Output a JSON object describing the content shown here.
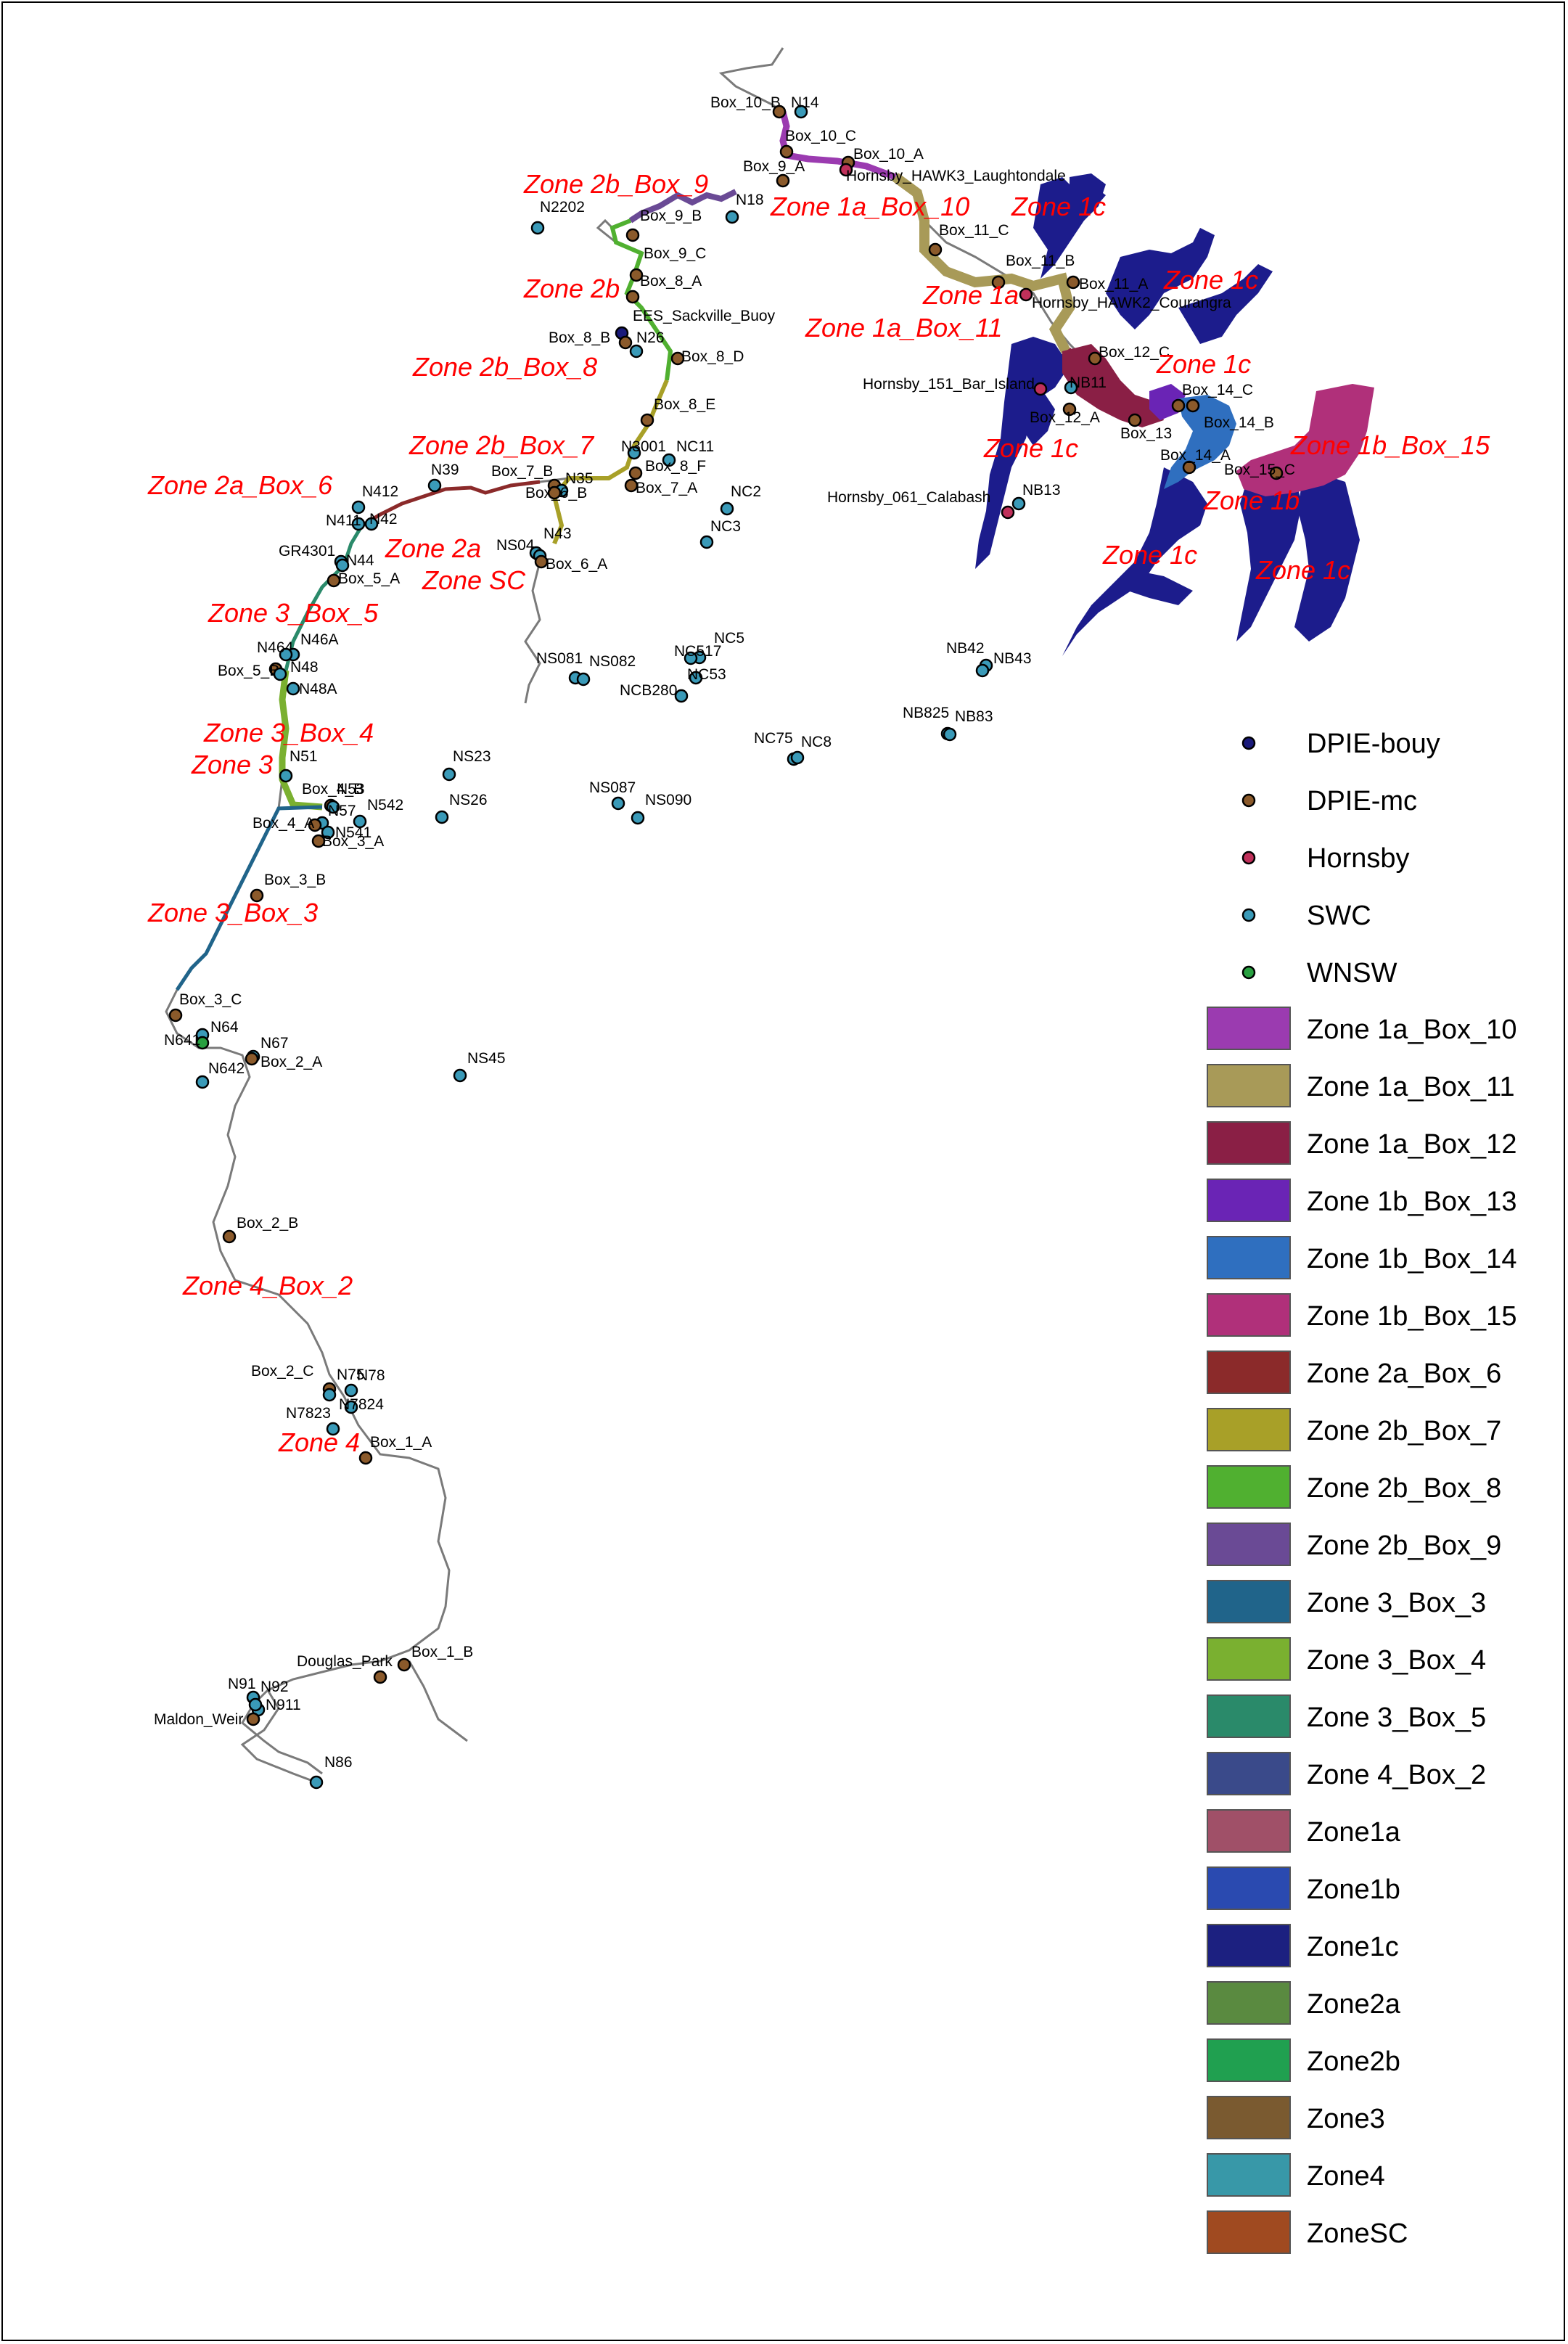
{
  "colors": {
    "DPIE-bouy": "#1a1a7a",
    "DPIE-mc": "#8b5a2b",
    "Hornsby": "#c0305a",
    "SWC": "#3a9ab8",
    "WNSW": "#28a040",
    "river": "#7a7a7a",
    "estuary": "#1c1c8c",
    "zone_label": "#ff0000"
  },
  "legend": {
    "points": [
      {
        "name": "DPIE-bouy",
        "color": "#1a1a7a"
      },
      {
        "name": "DPIE-mc",
        "color": "#8b5a2b"
      },
      {
        "name": "Hornsby",
        "color": "#c0305a"
      },
      {
        "name": "SWC",
        "color": "#3a9ab8"
      },
      {
        "name": "WNSW",
        "color": "#28a040"
      }
    ],
    "zones": [
      {
        "name": "Zone 1a_Box_10",
        "color": "#9b3bb0"
      },
      {
        "name": "Zone 1a_Box_11",
        "color": "#a89a58"
      },
      {
        "name": "Zone 1a_Box_12",
        "color": "#8a1f45"
      },
      {
        "name": "Zone 1b_Box_13",
        "color": "#6a24b5"
      },
      {
        "name": "Zone 1b_Box_14",
        "color": "#2f6fbf"
      },
      {
        "name": "Zone 1b_Box_15",
        "color": "#b0307a"
      },
      {
        "name": "Zone 2a_Box_6",
        "color": "#8b2a2a"
      },
      {
        "name": "Zone 2b_Box_7",
        "color": "#a8a028"
      },
      {
        "name": "Zone 2b_Box_8",
        "color": "#50b030"
      },
      {
        "name": "Zone 2b_Box_9",
        "color": "#6a4a95"
      },
      {
        "name": "Zone 3_Box_3",
        "color": "#20648a"
      },
      {
        "name": "Zone 3_Box_4",
        "color": "#7ab030"
      },
      {
        "name": "Zone 3_Box_5",
        "color": "#2a8a6a"
      },
      {
        "name": "Zone 4_Box_2",
        "color": "#3a4a8a"
      },
      {
        "name": "Zone1a",
        "color": "#a05068"
      },
      {
        "name": "Zone1b",
        "color": "#2a4ab0"
      },
      {
        "name": "Zone1c",
        "color": "#1c2080"
      },
      {
        "name": "Zone2a",
        "color": "#5a8a40"
      },
      {
        "name": "Zone2b",
        "color": "#20a050"
      },
      {
        "name": "Zone3",
        "color": "#7a5a30"
      },
      {
        "name": "Zone4",
        "color": "#3898a8"
      },
      {
        "name": "ZoneSC",
        "color": "#a04a20"
      }
    ]
  },
  "zone_labels": [
    {
      "id": "zl-1",
      "text": "Zone 2b_Box_9"
    },
    {
      "id": "zl-2",
      "text": "Zone 1a_Box_10"
    },
    {
      "id": "zl-3",
      "text": "Zone 1c"
    },
    {
      "id": "zl-4",
      "text": "Zone 2b"
    },
    {
      "id": "zl-5",
      "text": "Zone 1a"
    },
    {
      "id": "zl-6",
      "text": "Zone 1c"
    },
    {
      "id": "zl-7",
      "text": "Zone 1a_Box_11"
    },
    {
      "id": "zl-8",
      "text": "Zone 2b_Box_8"
    },
    {
      "id": "zl-9",
      "text": "Zone 1c"
    },
    {
      "id": "zl-10",
      "text": "Zone 2b_Box_7"
    },
    {
      "id": "zl-11",
      "text": "Zone 1c"
    },
    {
      "id": "zl-12",
      "text": "Zone 1b_Box_15"
    },
    {
      "id": "zl-13",
      "text": "Zone 2a_Box_6"
    },
    {
      "id": "zl-14",
      "text": "Zone 1b"
    },
    {
      "id": "zl-15",
      "text": "Zone 2a"
    },
    {
      "id": "zl-16",
      "text": "Zone SC"
    },
    {
      "id": "zl-17",
      "text": "Zone 1c"
    },
    {
      "id": "zl-18",
      "text": "Zone 1c"
    },
    {
      "id": "zl-19",
      "text": "Zone 3_Box_5"
    },
    {
      "id": "zl-20",
      "text": "Zone 3_Box_4"
    },
    {
      "id": "zl-21",
      "text": "Zone 3"
    },
    {
      "id": "zl-22",
      "text": "Zone 3_Box_3"
    },
    {
      "id": "zl-23",
      "text": "Zone 4_Box_2"
    },
    {
      "id": "zl-24",
      "text": "Zone 4"
    }
  ],
  "sites": [
    {
      "label": "Box_10_B",
      "network": "DPIE-mc"
    },
    {
      "label": "N14",
      "network": "SWC"
    },
    {
      "label": "Box_10_C",
      "network": "DPIE-mc"
    },
    {
      "label": "Box_10_A",
      "network": "DPIE-mc"
    },
    {
      "label": "Box_9_A",
      "network": "DPIE-mc"
    },
    {
      "label": "Hornsby_HAWK3_Laughtondale",
      "network": "Hornsby"
    },
    {
      "label": "N18",
      "network": "SWC"
    },
    {
      "label": "N2202",
      "network": "SWC"
    },
    {
      "label": "Box_9_B",
      "network": "DPIE-mc"
    },
    {
      "label": "Box_11_C",
      "network": "DPIE-mc"
    },
    {
      "label": "Box_9_C",
      "network": "DPIE-mc"
    },
    {
      "label": "Box_11_B",
      "network": "DPIE-mc"
    },
    {
      "label": "Box_8_A",
      "network": "DPIE-mc"
    },
    {
      "label": "Box_11_A",
      "network": "DPIE-mc"
    },
    {
      "label": "Hornsby_HAWK2_Courangra",
      "network": "Hornsby"
    },
    {
      "label": "EES_Sackville_Buoy",
      "network": "DPIE-bouy"
    },
    {
      "label": "Box_8_B",
      "network": "DPIE-mc"
    },
    {
      "label": "N26",
      "network": "SWC"
    },
    {
      "label": "Box_8_D",
      "network": "DPIE-mc"
    },
    {
      "label": "Box_12_C",
      "network": "DPIE-mc"
    },
    {
      "label": "Hornsby_151_Bar_Island",
      "network": "Hornsby"
    },
    {
      "label": "NB11",
      "network": "SWC"
    },
    {
      "label": "Box_12_A",
      "network": "DPIE-mc"
    },
    {
      "label": "Box_13",
      "network": "DPIE-mc"
    },
    {
      "label": "Box_14_C",
      "network": "DPIE-mc"
    },
    {
      "label": "Box_14_B",
      "network": "DPIE-mc"
    },
    {
      "label": "Box_8_E",
      "network": "DPIE-mc"
    },
    {
      "label": "N3001",
      "network": "SWC"
    },
    {
      "label": "NC11",
      "network": "SWC"
    },
    {
      "label": "Box_8_F",
      "network": "DPIE-mc"
    },
    {
      "label": "Box_14_A",
      "network": "DPIE-mc"
    },
    {
      "label": "Box_15_C",
      "network": "DPIE-mc"
    },
    {
      "label": "N39",
      "network": "SWC"
    },
    {
      "label": "Box_7_B",
      "network": "DPIE-mc"
    },
    {
      "label": "N35",
      "network": "SWC"
    },
    {
      "label": "Box_7_A",
      "network": "DPIE-mc"
    },
    {
      "label": "NC2",
      "network": "SWC"
    },
    {
      "label": "N412",
      "network": "SWC"
    },
    {
      "label": "Box_6_B",
      "network": "DPIE-mc"
    },
    {
      "label": "Hornsby_061_Calabash",
      "network": "Hornsby"
    },
    {
      "label": "NB13",
      "network": "SWC"
    },
    {
      "label": "N411",
      "network": "SWC"
    },
    {
      "label": "N42",
      "network": "SWC"
    },
    {
      "label": "NC3",
      "network": "SWC"
    },
    {
      "label": "NS04",
      "network": "SWC"
    },
    {
      "label": "N43",
      "network": "SWC"
    },
    {
      "label": "GR4301",
      "network": "SWC"
    },
    {
      "label": "N44",
      "network": "SWC"
    },
    {
      "label": "Box_6_A",
      "network": "DPIE-mc"
    },
    {
      "label": "Box_5_A",
      "network": "DPIE-mc"
    },
    {
      "label": "N46A",
      "network": "SWC"
    },
    {
      "label": "N464",
      "network": "SWC"
    },
    {
      "label": "NC5",
      "network": "SWC"
    },
    {
      "label": "NC517",
      "network": "SWC"
    },
    {
      "label": "NB42",
      "network": "SWC"
    },
    {
      "label": "NB43",
      "network": "SWC"
    },
    {
      "label": "NS081",
      "network": "SWC"
    },
    {
      "label": "NS082",
      "network": "SWC"
    },
    {
      "label": "Box_5_B",
      "network": "DPIE-mc"
    },
    {
      "label": "N48",
      "network": "SWC"
    },
    {
      "label": "NC53",
      "network": "SWC"
    },
    {
      "label": "N48A",
      "network": "SWC"
    },
    {
      "label": "NCB280",
      "network": "SWC"
    },
    {
      "label": "NB825",
      "network": "SWC"
    },
    {
      "label": "NB83",
      "network": "SWC"
    },
    {
      "label": "NC75",
      "network": "SWC"
    },
    {
      "label": "NC8",
      "network": "SWC"
    },
    {
      "label": "NS23",
      "network": "SWC"
    },
    {
      "label": "N51",
      "network": "SWC"
    },
    {
      "label": "Box_4_B",
      "network": "DPIE-mc"
    },
    {
      "label": "N53",
      "network": "SWC"
    },
    {
      "label": "NS087",
      "network": "SWC"
    },
    {
      "label": "NS090",
      "network": "SWC"
    },
    {
      "label": "NS26",
      "network": "SWC"
    },
    {
      "label": "N57",
      "network": "SWC"
    },
    {
      "label": "N542",
      "network": "SWC"
    },
    {
      "label": "Box_4_A",
      "network": "DPIE-mc"
    },
    {
      "label": "N541",
      "network": "SWC"
    },
    {
      "label": "Box_3_A",
      "network": "DPIE-mc"
    },
    {
      "label": "Box_3_B",
      "network": "DPIE-mc"
    },
    {
      "label": "Box_3_C",
      "network": "DPIE-mc"
    },
    {
      "label": "N64",
      "network": "SWC"
    },
    {
      "label": "N641",
      "network": "WNSW"
    },
    {
      "label": "N67",
      "network": "SWC"
    },
    {
      "label": "N642",
      "network": "SWC"
    },
    {
      "label": "Box_2_A",
      "network": "DPIE-mc"
    },
    {
      "label": "NS45",
      "network": "SWC"
    },
    {
      "label": "Box_2_B",
      "network": "DPIE-mc"
    },
    {
      "label": "Box_2_C",
      "network": "DPIE-mc"
    },
    {
      "label": "N75",
      "network": "SWC"
    },
    {
      "label": "N78",
      "network": "SWC"
    },
    {
      "label": "N7823",
      "network": "SWC"
    },
    {
      "label": "N7824",
      "network": "SWC"
    },
    {
      "label": "Box_1_A",
      "network": "DPIE-mc"
    },
    {
      "label": "Douglas_Park",
      "network": "DPIE-mc"
    },
    {
      "label": "Box_1_B",
      "network": "DPIE-mc"
    },
    {
      "label": "N91",
      "network": "SWC"
    },
    {
      "label": "N92",
      "network": "SWC"
    },
    {
      "label": "N911",
      "network": "SWC"
    },
    {
      "label": "Maldon_Weir",
      "network": "DPIE-mc"
    },
    {
      "label": "N86",
      "network": "SWC"
    }
  ]
}
